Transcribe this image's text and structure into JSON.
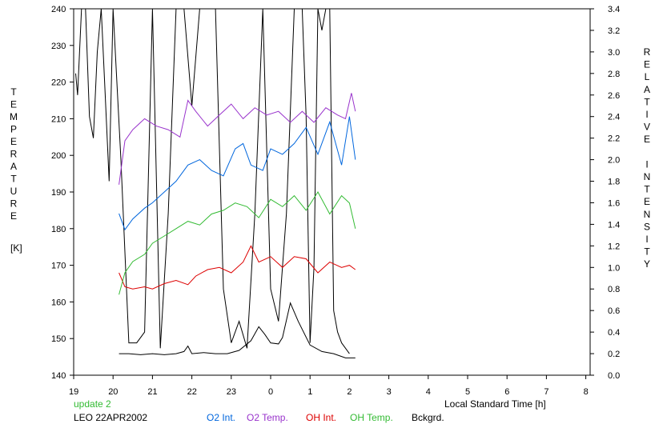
{
  "chart_data": {
    "type": "line",
    "left_axis": {
      "letters": [
        "T",
        "E",
        "M",
        "P",
        "E",
        "R",
        "A",
        "T",
        "U",
        "R",
        "E"
      ],
      "unit": "[K]",
      "ylim": [
        140,
        240
      ],
      "ticks": [
        "140",
        "150",
        "160",
        "170",
        "180",
        "190",
        "200",
        "210",
        "220",
        "230",
        "240"
      ]
    },
    "right_axis": {
      "letters": [
        "R",
        "E",
        "L",
        "A",
        "T",
        "I",
        "V",
        "E",
        "",
        "I",
        "N",
        "T",
        "E",
        "N",
        "S",
        "I",
        "T",
        "Y"
      ],
      "ylim": [
        0.0,
        3.4
      ],
      "ticks": [
        "0.0",
        "0.2",
        "0.4",
        "0.6",
        "0.8",
        "1.0",
        "1.2",
        "1.4",
        "1.6",
        "1.8",
        "2.0",
        "2.2",
        "2.4",
        "2.6",
        "2.8",
        "3.0",
        "3.2",
        "3.4"
      ]
    },
    "x_axis": {
      "label": "Local Standard Time [h]",
      "ticks": [
        "19",
        "20",
        "21",
        "22",
        "23",
        "0",
        "1",
        "2",
        "3",
        "4",
        "5",
        "6",
        "7",
        "8"
      ],
      "range_hours_of_tick": [
        0,
        13
      ]
    },
    "update_text": "update 2",
    "station_text": "LEO 22APR2002",
    "series": [
      {
        "name": "O2 Int.",
        "color": "#0066dd",
        "axis": "right",
        "x": [
          1.15,
          1.3,
          1.5,
          1.8,
          2.0,
          2.3,
          2.6,
          2.9,
          3.2,
          3.5,
          3.8,
          4.1,
          4.3,
          4.5,
          4.8,
          5.0,
          5.3,
          5.6,
          5.9,
          6.2,
          6.5,
          6.8,
          7.0,
          7.15
        ],
        "y": [
          1.5,
          1.35,
          1.45,
          1.55,
          1.6,
          1.7,
          1.8,
          1.95,
          2.0,
          1.9,
          1.85,
          2.1,
          2.15,
          1.95,
          1.9,
          2.1,
          2.05,
          2.15,
          2.3,
          2.05,
          2.35,
          1.95,
          2.4,
          2.0
        ]
      },
      {
        "name": "O2 Temp.",
        "color": "#9933cc",
        "axis": "left",
        "x": [
          1.15,
          1.3,
          1.5,
          1.8,
          2.1,
          2.4,
          2.7,
          2.9,
          3.1,
          3.4,
          3.7,
          4.0,
          4.3,
          4.6,
          4.9,
          5.2,
          5.5,
          5.8,
          6.1,
          6.4,
          6.7,
          6.9,
          7.05,
          7.15
        ],
        "y": [
          192,
          204,
          207,
          210,
          208,
          207,
          205,
          215,
          212,
          208,
          211,
          214,
          210,
          213,
          211,
          212,
          209,
          212,
          209,
          213,
          211,
          210,
          217,
          212
        ]
      },
      {
        "name": "OH Int.",
        "color": "#dd0000",
        "axis": "right",
        "x": [
          1.15,
          1.3,
          1.5,
          1.8,
          2.0,
          2.3,
          2.6,
          2.9,
          3.1,
          3.4,
          3.7,
          4.0,
          4.3,
          4.5,
          4.7,
          5.0,
          5.3,
          5.6,
          5.9,
          6.2,
          6.5,
          6.8,
          7.0,
          7.15
        ],
        "y": [
          0.95,
          0.82,
          0.8,
          0.82,
          0.8,
          0.85,
          0.88,
          0.84,
          0.92,
          0.98,
          1.0,
          0.95,
          1.05,
          1.2,
          1.05,
          1.1,
          1.0,
          1.1,
          1.08,
          0.95,
          1.05,
          1.0,
          1.02,
          0.98
        ]
      },
      {
        "name": "OH Temp.",
        "color": "#33bb33",
        "axis": "left",
        "x": [
          1.15,
          1.3,
          1.5,
          1.8,
          2.0,
          2.3,
          2.6,
          2.9,
          3.2,
          3.5,
          3.8,
          4.1,
          4.4,
          4.7,
          5.0,
          5.3,
          5.6,
          5.9,
          6.2,
          6.5,
          6.8,
          7.0,
          7.15
        ],
        "y": [
          162,
          168,
          171,
          173,
          176,
          178,
          180,
          182,
          181,
          184,
          185,
          187,
          186,
          183,
          188,
          186,
          189,
          185,
          190,
          184,
          189,
          187,
          180
        ]
      },
      {
        "name": "Bckgrd.",
        "color": "#000000",
        "axis": "right",
        "x": [
          1.15,
          1.4,
          1.7,
          2.0,
          2.3,
          2.6,
          2.8,
          2.9,
          3.0,
          3.3,
          3.6,
          3.9,
          4.2,
          4.5,
          4.7,
          4.85,
          5.0,
          5.2,
          5.3,
          5.5,
          5.7,
          6.0,
          6.3,
          6.6,
          6.9,
          7.15
        ],
        "y": [
          0.2,
          0.2,
          0.19,
          0.2,
          0.19,
          0.2,
          0.22,
          0.27,
          0.2,
          0.21,
          0.2,
          0.2,
          0.23,
          0.32,
          0.45,
          0.38,
          0.3,
          0.29,
          0.35,
          0.67,
          0.5,
          0.28,
          0.22,
          0.2,
          0.16,
          0.16
        ]
      }
    ],
    "evening_trace": {
      "color": "#000000",
      "axis": "right",
      "x": [
        0.05,
        0.1,
        0.2,
        0.3,
        0.4,
        0.5,
        0.6,
        0.7,
        0.8,
        0.9,
        1.0,
        1.2,
        1.4,
        1.6,
        1.8,
        2.0,
        2.2,
        2.4,
        2.6,
        2.8,
        3.0,
        3.2,
        3.4,
        3.6,
        3.8,
        4.0,
        4.2,
        4.4,
        4.6,
        4.8,
        5.0,
        5.2,
        5.4,
        5.6,
        5.8,
        5.9,
        6.0,
        6.1,
        6.2,
        6.3,
        6.4,
        6.5,
        6.6,
        6.7,
        6.8,
        6.9,
        7.0
      ],
      "y": [
        2.8,
        2.6,
        3.4,
        3.4,
        2.4,
        2.2,
        3.0,
        3.4,
        2.6,
        1.8,
        3.4,
        2.0,
        0.3,
        0.3,
        0.4,
        3.4,
        0.25,
        1.5,
        3.4,
        3.4,
        2.5,
        3.4,
        3.4,
        3.4,
        0.8,
        0.3,
        0.5,
        0.25,
        1.5,
        3.4,
        0.8,
        0.5,
        1.5,
        3.4,
        3.4,
        2.4,
        0.3,
        1.0,
        3.4,
        3.2,
        3.4,
        3.4,
        0.6,
        0.4,
        0.3,
        0.25,
        0.2
      ]
    }
  }
}
